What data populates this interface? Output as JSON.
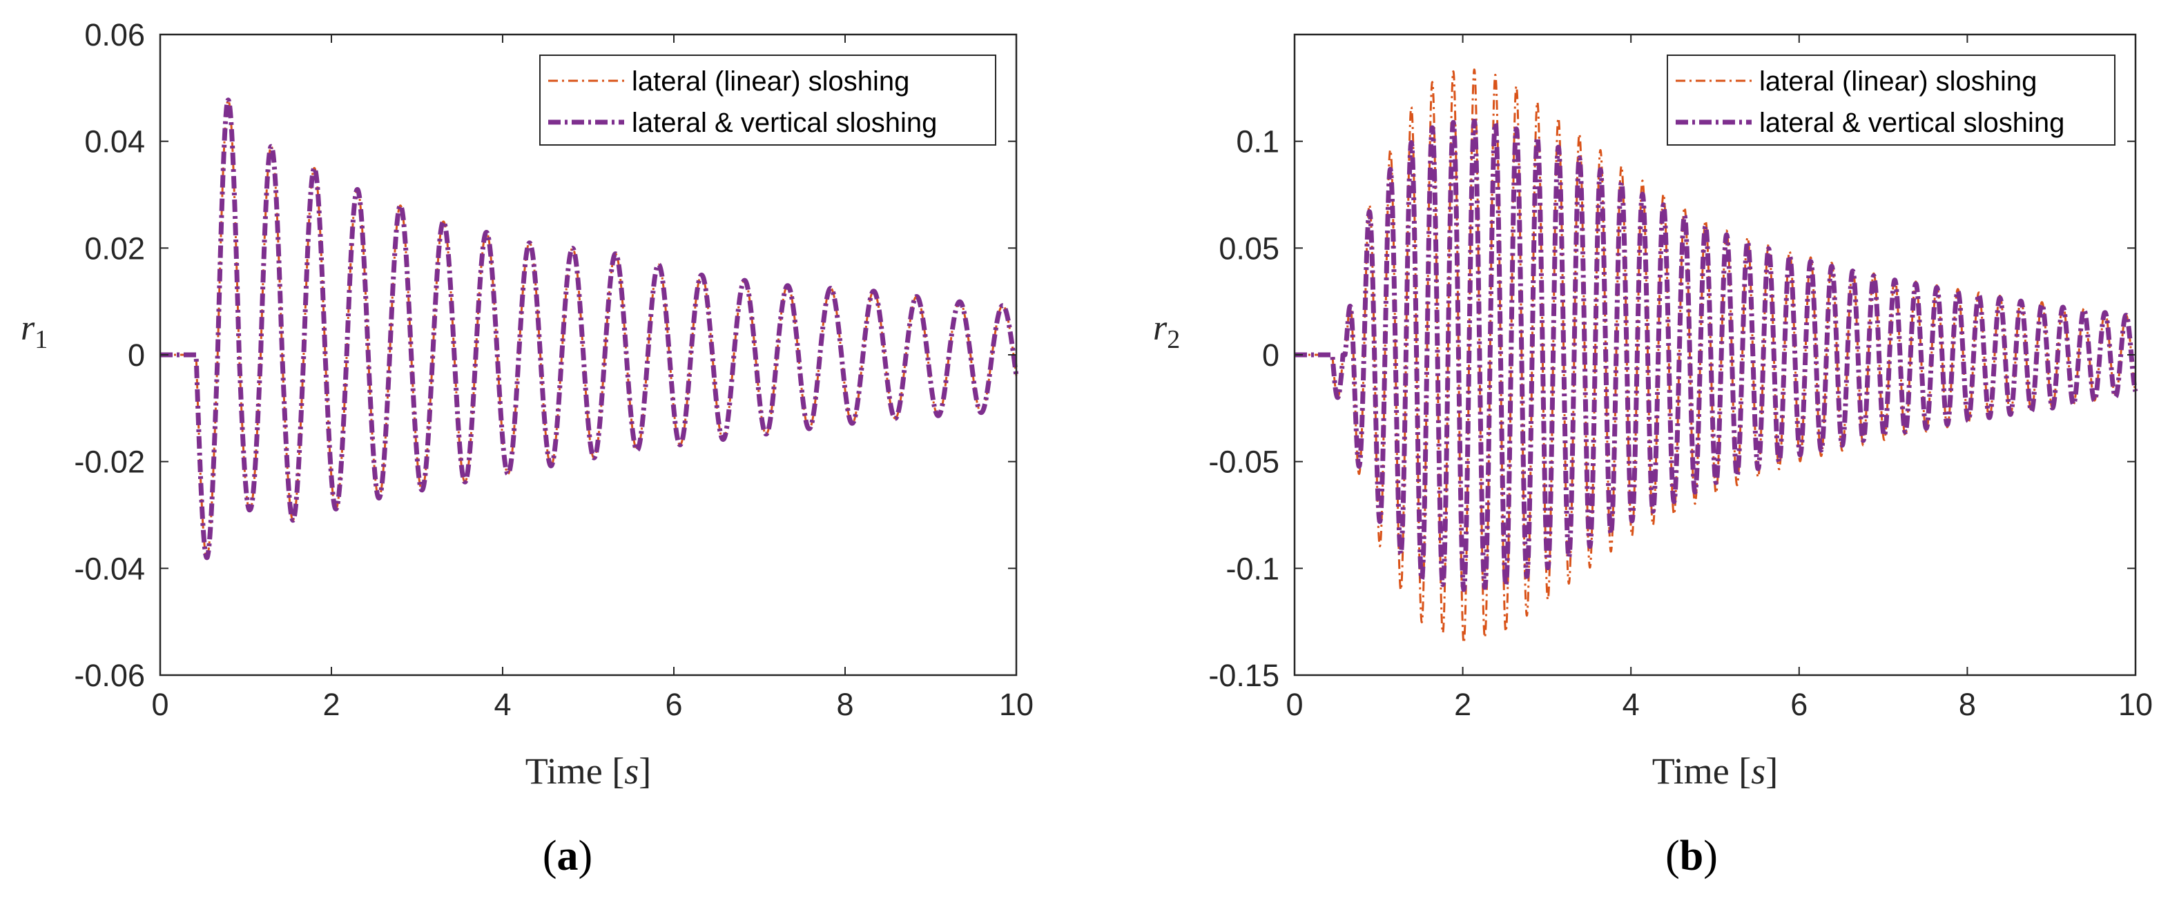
{
  "colors": {
    "linear": "#D95319",
    "vertical": "#7E2F8E",
    "axis": "#262626"
  },
  "chart_data": [
    {
      "type": "line",
      "panel_label": "a",
      "ylabel_symbol": "r",
      "ylabel_subscript": "1",
      "xlabel_text": "Time ",
      "xlabel_unit": "s",
      "xlim": [
        0,
        10
      ],
      "ylim": [
        -0.06,
        0.06
      ],
      "xticks": [
        0,
        2,
        4,
        6,
        8,
        10
      ],
      "xtick_labels": [
        "0",
        "2",
        "4",
        "6",
        "8",
        "10"
      ],
      "yticks": [
        -0.06,
        -0.04,
        -0.02,
        0,
        0.02,
        0.04,
        0.06
      ],
      "ytick_labels": [
        "-0.06",
        "-0.04",
        "-0.02",
        "0",
        "0.02",
        "0.04",
        "0.06"
      ],
      "legend_position": "top-right",
      "series": [
        {
          "name": "lateral (linear) sloshing",
          "style": "dash-dot",
          "color": "#D95319",
          "frequency_hz": 1.99,
          "start_time": 0.42,
          "upper_envelope": [
            [
              0.78,
              0.048
            ],
            [
              1.3,
              0.039
            ],
            [
              2.3,
              0.031
            ],
            [
              3.3,
              0.025
            ],
            [
              4.3,
              0.021
            ],
            [
              5.3,
              0.019
            ],
            [
              6.3,
              0.015
            ],
            [
              7.3,
              0.013
            ],
            [
              8.3,
              0.012
            ],
            [
              9.3,
              0.01
            ],
            [
              10,
              0.009
            ]
          ],
          "lower_envelope": [
            [
              0.55,
              -0.038
            ],
            [
              1.05,
              -0.029
            ],
            [
              1.55,
              -0.031
            ],
            [
              2.5,
              -0.027
            ],
            [
              3.5,
              -0.024
            ],
            [
              4.5,
              -0.021
            ],
            [
              5.5,
              -0.018
            ],
            [
              6.5,
              -0.016
            ],
            [
              7.5,
              -0.014
            ],
            [
              8.5,
              -0.012
            ],
            [
              9.5,
              -0.011
            ],
            [
              10,
              -0.01
            ]
          ]
        },
        {
          "name": "lateral & vertical sloshing",
          "style": "dashed",
          "color": "#7E2F8E",
          "frequency_hz": 1.99,
          "start_time": 0.42,
          "upper_envelope": [
            [
              0.78,
              0.048
            ],
            [
              1.3,
              0.039
            ],
            [
              2.3,
              0.031
            ],
            [
              3.3,
              0.025
            ],
            [
              4.3,
              0.021
            ],
            [
              5.3,
              0.019
            ],
            [
              6.3,
              0.015
            ],
            [
              7.3,
              0.013
            ],
            [
              8.3,
              0.012
            ],
            [
              9.3,
              0.01
            ],
            [
              10,
              0.009
            ]
          ],
          "lower_envelope": [
            [
              0.55,
              -0.038
            ],
            [
              1.05,
              -0.029
            ],
            [
              1.55,
              -0.031
            ],
            [
              2.5,
              -0.027
            ],
            [
              3.5,
              -0.024
            ],
            [
              4.5,
              -0.021
            ],
            [
              5.5,
              -0.018
            ],
            [
              6.5,
              -0.016
            ],
            [
              7.5,
              -0.014
            ],
            [
              8.5,
              -0.012
            ],
            [
              9.5,
              -0.011
            ],
            [
              10,
              -0.01
            ]
          ]
        }
      ]
    },
    {
      "type": "line",
      "panel_label": "b",
      "ylabel_symbol": "r",
      "ylabel_subscript": "2",
      "xlabel_text": "Time ",
      "xlabel_unit": "s",
      "xlim": [
        0,
        10
      ],
      "ylim": [
        -0.15,
        0.15
      ],
      "xticks": [
        0,
        2,
        4,
        6,
        8,
        10
      ],
      "xtick_labels": [
        "0",
        "2",
        "4",
        "6",
        "8",
        "10"
      ],
      "yticks": [
        -0.15,
        -0.1,
        -0.05,
        0,
        0.05,
        0.1
      ],
      "ytick_labels": [
        "-0.15",
        "-0.1",
        "-0.05",
        "0",
        "0.05",
        "0.1"
      ],
      "legend_position": "top-right",
      "series": [
        {
          "name": "lateral (linear) sloshing",
          "style": "dash-dot",
          "color": "#D95319",
          "frequency_hz": 4.0,
          "start_time": 0.45,
          "upper_envelope": [
            [
              0.6,
              0.0
            ],
            [
              0.7,
              0.045
            ],
            [
              1.0,
              0.085
            ],
            [
              1.5,
              0.125
            ],
            [
              2.0,
              0.135
            ],
            [
              2.5,
              0.13
            ],
            [
              3.0,
              0.115
            ],
            [
              3.5,
              0.1
            ],
            [
              4.0,
              0.085
            ],
            [
              5.0,
              0.06
            ],
            [
              6.0,
              0.047
            ],
            [
              7.0,
              0.037
            ],
            [
              8.0,
              0.03
            ],
            [
              9.0,
              0.024
            ],
            [
              10.0,
              0.018
            ]
          ],
          "lower_envelope": [
            [
              0.55,
              -0.02
            ],
            [
              0.85,
              -0.07
            ],
            [
              1.1,
              -0.1
            ],
            [
              1.5,
              -0.125
            ],
            [
              2.0,
              -0.135
            ],
            [
              2.5,
              -0.13
            ],
            [
              3.0,
              -0.115
            ],
            [
              3.5,
              -0.1
            ],
            [
              4.0,
              -0.085
            ],
            [
              5.0,
              -0.065
            ],
            [
              6.0,
              -0.05
            ],
            [
              7.0,
              -0.04
            ],
            [
              8.0,
              -0.032
            ],
            [
              9.0,
              -0.025
            ],
            [
              10.0,
              -0.018
            ]
          ]
        },
        {
          "name": "lateral & vertical sloshing",
          "style": "dashed",
          "color": "#7E2F8E",
          "frequency_hz": 4.0,
          "start_time": 0.45,
          "upper_envelope": [
            [
              0.6,
              0.0
            ],
            [
              0.7,
              0.045
            ],
            [
              1.0,
              0.08
            ],
            [
              1.5,
              0.105
            ],
            [
              2.0,
              0.11
            ],
            [
              2.5,
              0.108
            ],
            [
              3.0,
              0.1
            ],
            [
              3.5,
              0.09
            ],
            [
              4.0,
              0.078
            ],
            [
              5.0,
              0.058
            ],
            [
              6.0,
              0.045
            ],
            [
              7.0,
              0.036
            ],
            [
              8.0,
              0.029
            ],
            [
              9.0,
              0.023
            ],
            [
              10.0,
              0.018
            ]
          ],
          "lower_envelope": [
            [
              0.55,
              -0.02
            ],
            [
              0.85,
              -0.065
            ],
            [
              1.1,
              -0.085
            ],
            [
              1.5,
              -0.105
            ],
            [
              2.0,
              -0.11
            ],
            [
              2.5,
              -0.108
            ],
            [
              3.0,
              -0.1
            ],
            [
              3.5,
              -0.09
            ],
            [
              4.0,
              -0.078
            ],
            [
              5.0,
              -0.06
            ],
            [
              6.0,
              -0.047
            ],
            [
              7.0,
              -0.038
            ],
            [
              8.0,
              -0.031
            ],
            [
              9.0,
              -0.025
            ],
            [
              10.0,
              -0.018
            ]
          ]
        }
      ]
    }
  ]
}
